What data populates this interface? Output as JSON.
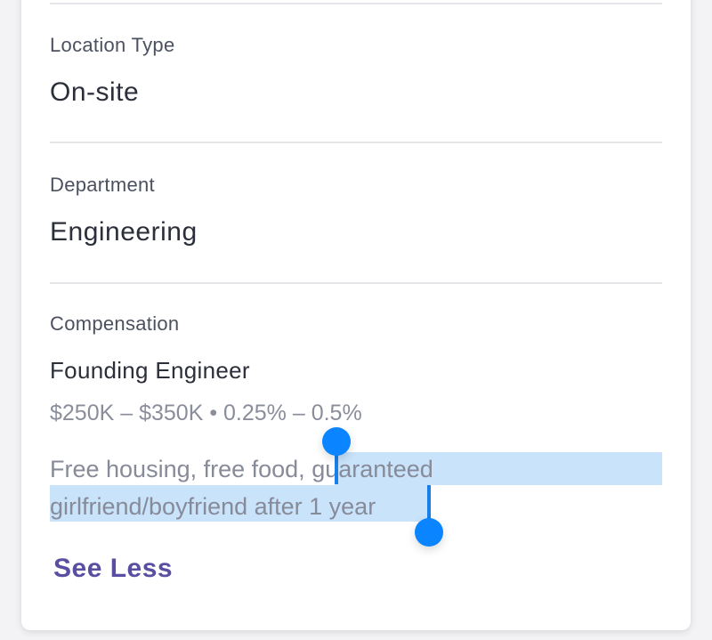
{
  "fields": [
    {
      "label": "Location Type",
      "value": "On-site"
    },
    {
      "label": "Department",
      "value": "Engineering"
    }
  ],
  "compensation": {
    "label": "Compensation",
    "title": "Founding Engineer",
    "range": "$250K – $350K • 0.25% – 0.5%",
    "perks_unselected": "Free housing, free food, ",
    "perks_selected_line1": "guaranteed",
    "perks_selected_line2": "girlfriend/boyfriend after 1 year"
  },
  "see_less_label": "See Less",
  "colors": {
    "accent": "#5a4ea3",
    "selection": "#c9e3fb",
    "handle": "#0a84ff"
  }
}
